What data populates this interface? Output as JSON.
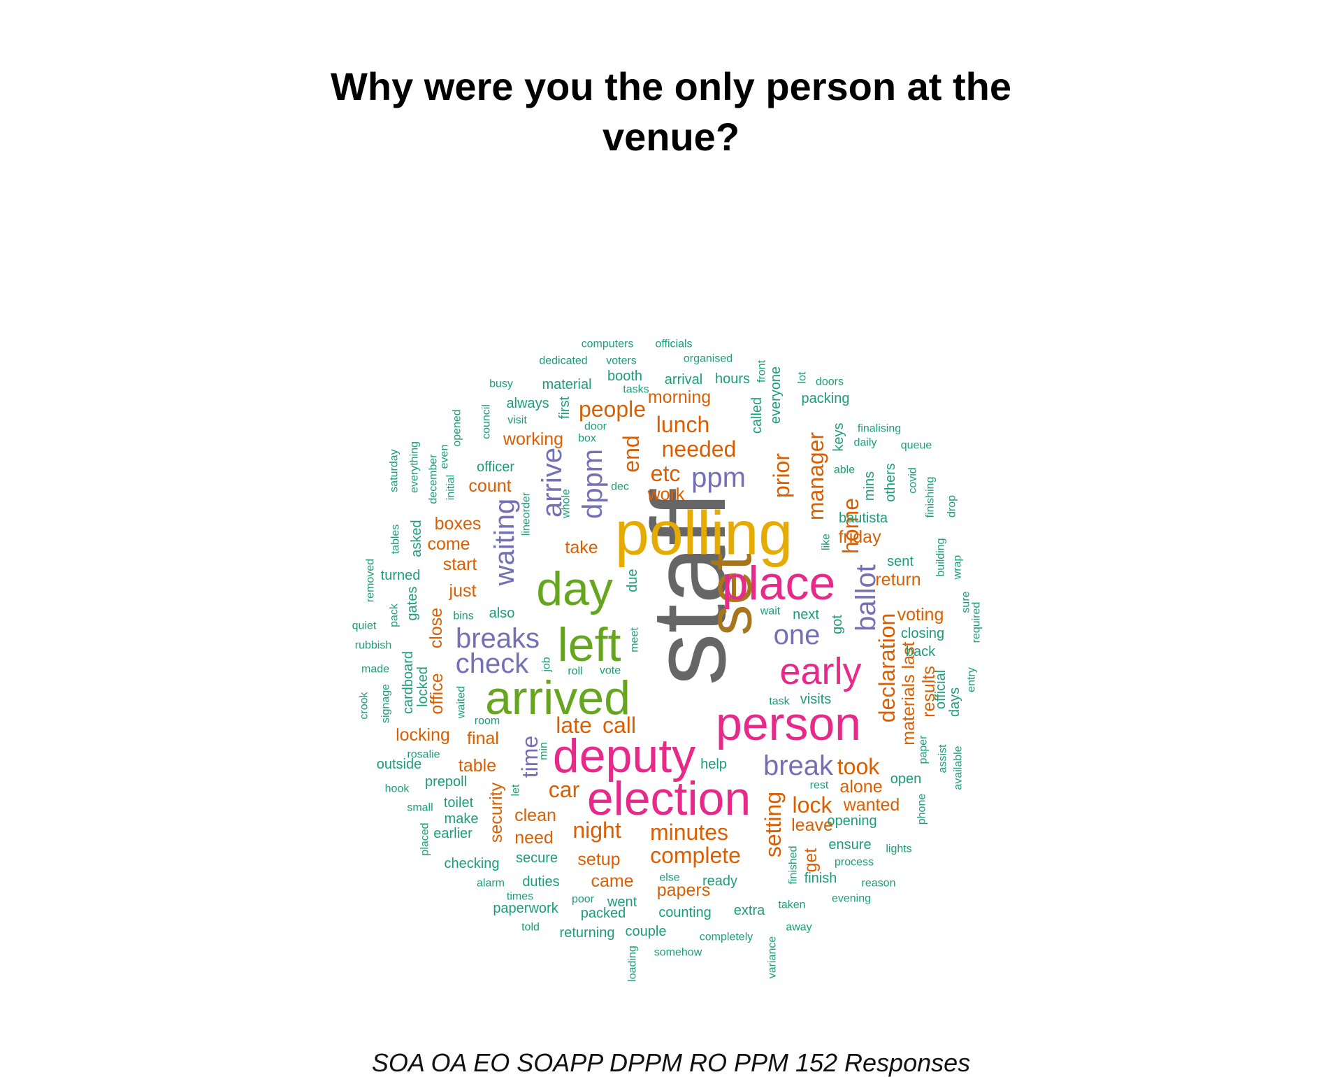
{
  "chart_data": {
    "type": "wordcloud",
    "title": [
      "Why were you the only person at the",
      "venue?"
    ],
    "caption": "SOA OA EO SOAPP DPPM RO PPM 152 Responses",
    "palette": {
      "teal": "#1b9e77",
      "orange": "#d95f02",
      "purple": "#7570b3",
      "pink": "#e7298a",
      "green": "#66a61e",
      "gold": "#e6ab02",
      "brown": "#a6761d",
      "gray": "#666666"
    },
    "words": [
      {
        "text": "staff",
        "size": 10,
        "color": "gray"
      },
      {
        "text": "polling",
        "size": 9,
        "color": "gold"
      },
      {
        "text": "set",
        "size": 9,
        "color": "brown"
      },
      {
        "text": "day",
        "size": 8,
        "color": "green"
      },
      {
        "text": "arrived",
        "size": 8,
        "color": "green"
      },
      {
        "text": "left",
        "size": 8,
        "color": "green"
      },
      {
        "text": "place",
        "size": 8,
        "color": "pink"
      },
      {
        "text": "person",
        "size": 8,
        "color": "pink"
      },
      {
        "text": "deputy",
        "size": 8,
        "color": "pink"
      },
      {
        "text": "election",
        "size": 8,
        "color": "pink"
      },
      {
        "text": "early",
        "size": 7,
        "color": "pink"
      },
      {
        "text": "breaks",
        "size": 6,
        "color": "purple"
      },
      {
        "text": "check",
        "size": 6,
        "color": "purple"
      },
      {
        "text": "one",
        "size": 6,
        "color": "purple"
      },
      {
        "text": "break",
        "size": 6,
        "color": "purple"
      },
      {
        "text": "ppm",
        "size": 6,
        "color": "purple"
      },
      {
        "text": "dppm",
        "size": 6,
        "color": "purple"
      },
      {
        "text": "arrive",
        "size": 6,
        "color": "purple"
      },
      {
        "text": "waiting",
        "size": 6,
        "color": "purple"
      },
      {
        "text": "ballot",
        "size": 6,
        "color": "purple"
      },
      {
        "text": "time",
        "size": 5,
        "color": "purple"
      },
      {
        "text": "declaration",
        "size": 5,
        "color": "orange"
      },
      {
        "text": "complete",
        "size": 5,
        "color": "orange"
      },
      {
        "text": "minutes",
        "size": 5,
        "color": "orange"
      },
      {
        "text": "night",
        "size": 5,
        "color": "orange"
      },
      {
        "text": "car",
        "size": 5,
        "color": "orange"
      },
      {
        "text": "manager",
        "size": 5,
        "color": "orange"
      },
      {
        "text": "home",
        "size": 5,
        "color": "orange"
      },
      {
        "text": "lunch",
        "size": 5,
        "color": "orange"
      },
      {
        "text": "needed",
        "size": 5,
        "color": "orange"
      },
      {
        "text": "people",
        "size": 5,
        "color": "orange"
      },
      {
        "text": "etc",
        "size": 5,
        "color": "orange"
      },
      {
        "text": "late",
        "size": 5,
        "color": "orange"
      },
      {
        "text": "call",
        "size": 5,
        "color": "orange"
      },
      {
        "text": "setting",
        "size": 5,
        "color": "orange"
      },
      {
        "text": "lock",
        "size": 5,
        "color": "orange"
      },
      {
        "text": "took",
        "size": 5,
        "color": "orange"
      },
      {
        "text": "prior",
        "size": 5,
        "color": "orange"
      },
      {
        "text": "end",
        "size": 5,
        "color": "orange"
      },
      {
        "text": "setup",
        "size": 4,
        "color": "orange"
      },
      {
        "text": "final",
        "size": 4,
        "color": "orange"
      },
      {
        "text": "table",
        "size": 4,
        "color": "orange"
      },
      {
        "text": "morning",
        "size": 4,
        "color": "orange"
      },
      {
        "text": "work",
        "size": 4,
        "color": "orange"
      },
      {
        "text": "count",
        "size": 4,
        "color": "orange"
      },
      {
        "text": "leave",
        "size": 4,
        "color": "orange"
      },
      {
        "text": "materials",
        "size": 4,
        "color": "orange"
      },
      {
        "text": "last",
        "size": 4,
        "color": "orange"
      },
      {
        "text": "results",
        "size": 4,
        "color": "orange"
      },
      {
        "text": "voting",
        "size": 4,
        "color": "orange"
      },
      {
        "text": "return",
        "size": 4,
        "color": "orange"
      },
      {
        "text": "friday",
        "size": 4,
        "color": "orange"
      },
      {
        "text": "security",
        "size": 4,
        "color": "orange"
      },
      {
        "text": "papers",
        "size": 4,
        "color": "orange"
      },
      {
        "text": "came",
        "size": 4,
        "color": "orange"
      },
      {
        "text": "office",
        "size": 4,
        "color": "orange"
      },
      {
        "text": "close",
        "size": 4,
        "color": "orange"
      },
      {
        "text": "just",
        "size": 4,
        "color": "orange"
      },
      {
        "text": "start",
        "size": 4,
        "color": "orange"
      },
      {
        "text": "come",
        "size": 4,
        "color": "orange"
      },
      {
        "text": "boxes",
        "size": 4,
        "color": "orange"
      },
      {
        "text": "working",
        "size": 4,
        "color": "orange"
      },
      {
        "text": "take",
        "size": 4,
        "color": "orange"
      },
      {
        "text": "clean",
        "size": 4,
        "color": "orange"
      },
      {
        "text": "need",
        "size": 4,
        "color": "orange"
      },
      {
        "text": "alone",
        "size": 4,
        "color": "orange"
      },
      {
        "text": "wanted",
        "size": 4,
        "color": "orange"
      },
      {
        "text": "locking",
        "size": 4,
        "color": "orange"
      },
      {
        "text": "get",
        "size": 4,
        "color": "orange"
      },
      {
        "text": "closing",
        "size": 3,
        "color": "teal"
      },
      {
        "text": "opening",
        "size": 3,
        "color": "teal"
      },
      {
        "text": "open",
        "size": 3,
        "color": "teal"
      },
      {
        "text": "sent",
        "size": 3,
        "color": "teal"
      },
      {
        "text": "next",
        "size": 3,
        "color": "teal"
      },
      {
        "text": "prepoll",
        "size": 3,
        "color": "teal"
      },
      {
        "text": "toilet",
        "size": 3,
        "color": "teal"
      },
      {
        "text": "make",
        "size": 3,
        "color": "teal"
      },
      {
        "text": "secure",
        "size": 3,
        "color": "teal"
      },
      {
        "text": "duties",
        "size": 3,
        "color": "teal"
      },
      {
        "text": "ready",
        "size": 3,
        "color": "teal"
      },
      {
        "text": "counting",
        "size": 3,
        "color": "teal"
      },
      {
        "text": "packed",
        "size": 3,
        "color": "teal"
      },
      {
        "text": "extra",
        "size": 3,
        "color": "teal"
      },
      {
        "text": "went",
        "size": 3,
        "color": "teal"
      },
      {
        "text": "material",
        "size": 3,
        "color": "teal"
      },
      {
        "text": "always",
        "size": 3,
        "color": "teal"
      },
      {
        "text": "officer",
        "size": 3,
        "color": "teal"
      },
      {
        "text": "booth",
        "size": 3,
        "color": "teal"
      },
      {
        "text": "arrival",
        "size": 3,
        "color": "teal"
      },
      {
        "text": "hours",
        "size": 3,
        "color": "teal"
      },
      {
        "text": "packing",
        "size": 3,
        "color": "teal"
      },
      {
        "text": "everyone",
        "size": 3,
        "color": "teal"
      },
      {
        "text": "called",
        "size": 3,
        "color": "teal"
      },
      {
        "text": "first",
        "size": 3,
        "color": "teal"
      },
      {
        "text": "keys",
        "size": 3,
        "color": "teal"
      },
      {
        "text": "others",
        "size": 3,
        "color": "teal"
      },
      {
        "text": "mins",
        "size": 3,
        "color": "teal"
      },
      {
        "text": "bautista",
        "size": 3,
        "color": "teal"
      },
      {
        "text": "also",
        "size": 3,
        "color": "teal"
      },
      {
        "text": "help",
        "size": 3,
        "color": "teal"
      },
      {
        "text": "back",
        "size": 3,
        "color": "teal"
      },
      {
        "text": "official",
        "size": 3,
        "color": "teal"
      },
      {
        "text": "days",
        "size": 3,
        "color": "teal"
      },
      {
        "text": "ensure",
        "size": 3,
        "color": "teal"
      },
      {
        "text": "finish",
        "size": 3,
        "color": "teal"
      },
      {
        "text": "gates",
        "size": 3,
        "color": "teal"
      },
      {
        "text": "locked",
        "size": 3,
        "color": "teal"
      },
      {
        "text": "cardboard",
        "size": 3,
        "color": "teal"
      },
      {
        "text": "outside",
        "size": 3,
        "color": "teal"
      },
      {
        "text": "turned",
        "size": 3,
        "color": "teal"
      },
      {
        "text": "asked",
        "size": 3,
        "color": "teal"
      },
      {
        "text": "paperwork",
        "size": 3,
        "color": "teal"
      },
      {
        "text": "returning",
        "size": 3,
        "color": "teal"
      },
      {
        "text": "couple",
        "size": 3,
        "color": "teal"
      },
      {
        "text": "checking",
        "size": 3,
        "color": "teal"
      },
      {
        "text": "earlier",
        "size": 3,
        "color": "teal"
      },
      {
        "text": "visits",
        "size": 3,
        "color": "teal"
      },
      {
        "text": "due",
        "size": 3,
        "color": "teal"
      },
      {
        "text": "got",
        "size": 3,
        "color": "teal"
      },
      {
        "text": "computers",
        "size": 2,
        "color": "teal"
      },
      {
        "text": "officials",
        "size": 2,
        "color": "teal"
      },
      {
        "text": "dedicated",
        "size": 2,
        "color": "teal"
      },
      {
        "text": "voters",
        "size": 2,
        "color": "teal"
      },
      {
        "text": "organised",
        "size": 2,
        "color": "teal"
      },
      {
        "text": "busy",
        "size": 2,
        "color": "teal"
      },
      {
        "text": "tasks",
        "size": 2,
        "color": "teal"
      },
      {
        "text": "front",
        "size": 2,
        "color": "teal"
      },
      {
        "text": "lot",
        "size": 2,
        "color": "teal"
      },
      {
        "text": "doors",
        "size": 2,
        "color": "teal"
      },
      {
        "text": "council",
        "size": 2,
        "color": "teal"
      },
      {
        "text": "visit",
        "size": 2,
        "color": "teal"
      },
      {
        "text": "door",
        "size": 2,
        "color": "teal"
      },
      {
        "text": "box",
        "size": 2,
        "color": "teal"
      },
      {
        "text": "opened",
        "size": 2,
        "color": "teal"
      },
      {
        "text": "finalising",
        "size": 2,
        "color": "teal"
      },
      {
        "text": "daily",
        "size": 2,
        "color": "teal"
      },
      {
        "text": "queue",
        "size": 2,
        "color": "teal"
      },
      {
        "text": "able",
        "size": 2,
        "color": "teal"
      },
      {
        "text": "covid",
        "size": 2,
        "color": "teal"
      },
      {
        "text": "finishing",
        "size": 2,
        "color": "teal"
      },
      {
        "text": "drop",
        "size": 2,
        "color": "teal"
      },
      {
        "text": "saturday",
        "size": 2,
        "color": "teal"
      },
      {
        "text": "everything",
        "size": 2,
        "color": "teal"
      },
      {
        "text": "december",
        "size": 2,
        "color": "teal"
      },
      {
        "text": "even",
        "size": 2,
        "color": "teal"
      },
      {
        "text": "initial",
        "size": 2,
        "color": "teal"
      },
      {
        "text": "dec",
        "size": 2,
        "color": "teal"
      },
      {
        "text": "lineorder",
        "size": 2,
        "color": "teal"
      },
      {
        "text": "whole",
        "size": 2,
        "color": "teal"
      },
      {
        "text": "tables",
        "size": 2,
        "color": "teal"
      },
      {
        "text": "like",
        "size": 2,
        "color": "teal"
      },
      {
        "text": "building",
        "size": 2,
        "color": "teal"
      },
      {
        "text": "wrap",
        "size": 2,
        "color": "teal"
      },
      {
        "text": "removed",
        "size": 2,
        "color": "teal"
      },
      {
        "text": "quiet",
        "size": 2,
        "color": "teal"
      },
      {
        "text": "pack",
        "size": 2,
        "color": "teal"
      },
      {
        "text": "bins",
        "size": 2,
        "color": "teal"
      },
      {
        "text": "wait",
        "size": 2,
        "color": "teal"
      },
      {
        "text": "sure",
        "size": 2,
        "color": "teal"
      },
      {
        "text": "required",
        "size": 2,
        "color": "teal"
      },
      {
        "text": "rubbish",
        "size": 2,
        "color": "teal"
      },
      {
        "text": "meet",
        "size": 2,
        "color": "teal"
      },
      {
        "text": "made",
        "size": 2,
        "color": "teal"
      },
      {
        "text": "job",
        "size": 2,
        "color": "teal"
      },
      {
        "text": "roll",
        "size": 2,
        "color": "teal"
      },
      {
        "text": "vote",
        "size": 2,
        "color": "teal"
      },
      {
        "text": "entry",
        "size": 2,
        "color": "teal"
      },
      {
        "text": "crook",
        "size": 2,
        "color": "teal"
      },
      {
        "text": "signage",
        "size": 2,
        "color": "teal"
      },
      {
        "text": "waited",
        "size": 2,
        "color": "teal"
      },
      {
        "text": "task",
        "size": 2,
        "color": "teal"
      },
      {
        "text": "room",
        "size": 2,
        "color": "teal"
      },
      {
        "text": "rosalie",
        "size": 2,
        "color": "teal"
      },
      {
        "text": "min",
        "size": 2,
        "color": "teal"
      },
      {
        "text": "paper",
        "size": 2,
        "color": "teal"
      },
      {
        "text": "assist",
        "size": 2,
        "color": "teal"
      },
      {
        "text": "available",
        "size": 2,
        "color": "teal"
      },
      {
        "text": "hook",
        "size": 2,
        "color": "teal"
      },
      {
        "text": "rest",
        "size": 2,
        "color": "teal"
      },
      {
        "text": "let",
        "size": 2,
        "color": "teal"
      },
      {
        "text": "small",
        "size": 2,
        "color": "teal"
      },
      {
        "text": "phone",
        "size": 2,
        "color": "teal"
      },
      {
        "text": "placed",
        "size": 2,
        "color": "teal"
      },
      {
        "text": "lights",
        "size": 2,
        "color": "teal"
      },
      {
        "text": "process",
        "size": 2,
        "color": "teal"
      },
      {
        "text": "alarm",
        "size": 2,
        "color": "teal"
      },
      {
        "text": "else",
        "size": 2,
        "color": "teal"
      },
      {
        "text": "finished",
        "size": 2,
        "color": "teal"
      },
      {
        "text": "reason",
        "size": 2,
        "color": "teal"
      },
      {
        "text": "times",
        "size": 2,
        "color": "teal"
      },
      {
        "text": "poor",
        "size": 2,
        "color": "teal"
      },
      {
        "text": "taken",
        "size": 2,
        "color": "teal"
      },
      {
        "text": "evening",
        "size": 2,
        "color": "teal"
      },
      {
        "text": "told",
        "size": 2,
        "color": "teal"
      },
      {
        "text": "completely",
        "size": 2,
        "color": "teal"
      },
      {
        "text": "away",
        "size": 2,
        "color": "teal"
      },
      {
        "text": "somehow",
        "size": 2,
        "color": "teal"
      },
      {
        "text": "loading",
        "size": 2,
        "color": "teal"
      },
      {
        "text": "variance",
        "size": 2,
        "color": "teal"
      }
    ]
  }
}
